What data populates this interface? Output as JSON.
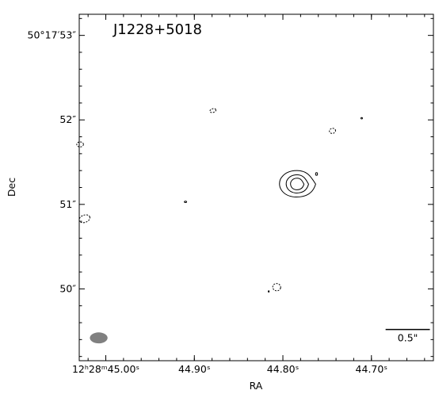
{
  "chart_data": {
    "type": "contour",
    "title": "J1228+5018",
    "xlabel": "RA",
    "ylabel": "Dec",
    "x_ticks": [
      {
        "value": 45.0,
        "label": "12ʰ28ᵐ45.00ˢ"
      },
      {
        "value": 44.9,
        "label": "44.90ˢ"
      },
      {
        "value": 44.8,
        "label": "44.80ˢ"
      },
      {
        "value": 44.7,
        "label": "44.70ˢ"
      }
    ],
    "y_ticks": [
      {
        "value": 53,
        "label": "50°17′53″"
      },
      {
        "value": 52,
        "label": "52″"
      },
      {
        "value": 51,
        "label": "51″"
      },
      {
        "value": 50,
        "label": "50″"
      }
    ],
    "xlim": [
      45.03,
      44.63
    ],
    "ylim": [
      49.15,
      53.25
    ],
    "source": {
      "ra": 44.784,
      "dec": 51.24,
      "solid_contours": [
        {
          "rx": 0.021,
          "ry": 0.16
        },
        {
          "rx": 0.013,
          "ry": 0.11
        },
        {
          "rx": 0.0078,
          "ry": 0.07
        }
      ]
    },
    "negative_contours": [
      {
        "ra": 45.024,
        "dec": 50.83,
        "rx": 0.0063,
        "ry": 0.043,
        "rot": -20
      },
      {
        "ra": 45.029,
        "dec": 51.71,
        "rx": 0.0038,
        "ry": 0.03,
        "rot": 0
      },
      {
        "ra": 44.879,
        "dec": 52.11,
        "rx": 0.0035,
        "ry": 0.022,
        "rot": -15
      },
      {
        "ra": 44.744,
        "dec": 51.87,
        "rx": 0.0035,
        "ry": 0.03,
        "rot": -15
      },
      {
        "ra": 44.807,
        "dec": 50.02,
        "rx": 0.0045,
        "ry": 0.043,
        "rot": 10
      }
    ],
    "small_positive_contours": [
      {
        "ra": 44.762,
        "dec": 51.36,
        "rx": 0.0011,
        "ry": 0.016
      },
      {
        "ra": 44.711,
        "dec": 52.02,
        "rx": 0.0009,
        "ry": 0.008
      }
    ],
    "small_negative_contours": [
      {
        "ra": 44.91,
        "dec": 51.03,
        "rx": 0.0013,
        "ry": 0.008
      },
      {
        "ra": 44.816,
        "dec": 49.97,
        "rx": 0.0005,
        "ry": 0.008
      }
    ],
    "beam": {
      "ra": 45.008,
      "dec": 49.42,
      "rx": 0.01,
      "ry": 0.065
    },
    "scalebar": {
      "label": "0.5\"",
      "length_ra": 0.05,
      "ra_center": 44.659,
      "dec": 49.52
    },
    "grid": false,
    "colors": {
      "contour": "#000000",
      "beam": "#808080"
    }
  }
}
